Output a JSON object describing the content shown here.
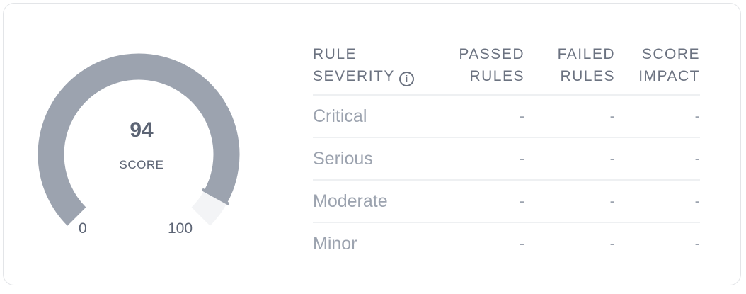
{
  "gauge": {
    "value": 94,
    "min": 0,
    "max": 100,
    "score_label": "SCORE",
    "min_label": "0",
    "max_label": "100",
    "fill_color": "#9ca3af",
    "track_color": "#f3f4f6"
  },
  "table": {
    "headers": {
      "severity_line1": "RULE",
      "severity_line2": "SEVERITY",
      "info_icon": "info-circle-icon",
      "passed_line1": "PASSED",
      "passed_line2": "RULES",
      "failed_line1": "FAILED",
      "failed_line2": "RULES",
      "impact_line1": "SCORE",
      "impact_line2": "IMPACT"
    },
    "rows": [
      {
        "severity": "Critical",
        "passed": "-",
        "failed": "-",
        "impact": "-"
      },
      {
        "severity": "Serious",
        "passed": "-",
        "failed": "-",
        "impact": "-"
      },
      {
        "severity": "Moderate",
        "passed": "-",
        "failed": "-",
        "impact": "-"
      },
      {
        "severity": "Minor",
        "passed": "-",
        "failed": "-",
        "impact": "-"
      }
    ]
  }
}
